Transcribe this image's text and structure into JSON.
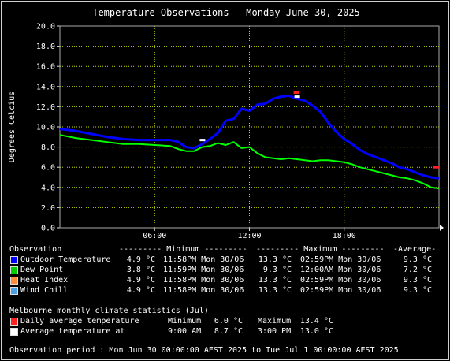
{
  "chart_data": {
    "type": "line",
    "title": "Temperature Observations - Monday June 30, 2025",
    "ylabel": "Degrees Celcius",
    "xlabel": "",
    "ylim": [
      0,
      20
    ],
    "yticks": [
      "0.0",
      "2.0",
      "4.0",
      "6.0",
      "8.0",
      "10.0",
      "12.0",
      "14.0",
      "16.0",
      "18.0",
      "20.0"
    ],
    "xlim_hours": [
      0,
      24
    ],
    "xticks": [
      {
        "hour": 6,
        "label": "06:00"
      },
      {
        "hour": 12,
        "label": "12:00"
      },
      {
        "hour": 18,
        "label": "18:00"
      }
    ],
    "grid": true,
    "series": [
      {
        "name": "Outdoor Temperature",
        "color": "#0000ff",
        "points": [
          [
            0,
            9.8
          ],
          [
            1,
            9.6
          ],
          [
            2,
            9.3
          ],
          [
            3,
            9.0
          ],
          [
            4,
            8.8
          ],
          [
            5,
            8.7
          ],
          [
            6,
            8.7
          ],
          [
            7,
            8.7
          ],
          [
            7.5,
            8.5
          ],
          [
            8,
            8.0
          ],
          [
            8.5,
            7.9
          ],
          [
            9,
            8.3
          ],
          [
            9.5,
            8.8
          ],
          [
            10,
            9.4
          ],
          [
            10.5,
            10.6
          ],
          [
            11,
            10.8
          ],
          [
            11.5,
            11.8
          ],
          [
            12,
            11.6
          ],
          [
            12.5,
            12.2
          ],
          [
            13,
            12.3
          ],
          [
            13.5,
            12.8
          ],
          [
            14,
            13.0
          ],
          [
            14.5,
            13.1
          ],
          [
            15,
            12.8
          ],
          [
            15.5,
            12.6
          ],
          [
            16,
            12.1
          ],
          [
            16.5,
            11.5
          ],
          [
            17,
            10.4
          ],
          [
            17.5,
            9.5
          ],
          [
            18,
            8.8
          ],
          [
            18.5,
            8.3
          ],
          [
            19,
            7.7
          ],
          [
            19.5,
            7.3
          ],
          [
            20,
            7.0
          ],
          [
            20.5,
            6.7
          ],
          [
            21,
            6.4
          ],
          [
            21.5,
            6.0
          ],
          [
            22,
            5.8
          ],
          [
            22.5,
            5.5
          ],
          [
            23,
            5.2
          ],
          [
            23.5,
            5.0
          ],
          [
            24,
            4.9
          ]
        ]
      },
      {
        "name": "Dew Point",
        "color": "#00ff00",
        "points": [
          [
            0,
            9.2
          ],
          [
            1,
            8.9
          ],
          [
            2,
            8.7
          ],
          [
            3,
            8.5
          ],
          [
            4,
            8.3
          ],
          [
            5,
            8.3
          ],
          [
            6,
            8.2
          ],
          [
            7,
            8.1
          ],
          [
            7.5,
            7.8
          ],
          [
            8,
            7.6
          ],
          [
            8.5,
            7.6
          ],
          [
            9,
            8.0
          ],
          [
            9.5,
            8.1
          ],
          [
            10,
            8.4
          ],
          [
            10.5,
            8.2
          ],
          [
            11,
            8.5
          ],
          [
            11.5,
            7.9
          ],
          [
            12,
            8.0
          ],
          [
            12.5,
            7.4
          ],
          [
            13,
            7.0
          ],
          [
            13.5,
            6.9
          ],
          [
            14,
            6.8
          ],
          [
            14.5,
            6.9
          ],
          [
            15,
            6.8
          ],
          [
            15.5,
            6.7
          ],
          [
            16,
            6.6
          ],
          [
            16.5,
            6.7
          ],
          [
            17,
            6.7
          ],
          [
            17.5,
            6.6
          ],
          [
            18,
            6.5
          ],
          [
            18.5,
            6.3
          ],
          [
            19,
            6.0
          ],
          [
            19.5,
            5.8
          ],
          [
            20,
            5.6
          ],
          [
            20.5,
            5.4
          ],
          [
            21,
            5.2
          ],
          [
            21.5,
            5.0
          ],
          [
            22,
            4.9
          ],
          [
            22.5,
            4.7
          ],
          [
            23,
            4.4
          ],
          [
            23.5,
            4.0
          ],
          [
            24,
            3.9
          ]
        ]
      }
    ],
    "markers": [
      {
        "name": "Daily average temperature max",
        "hour": 14.95,
        "value": 13.4,
        "color": "#ff2020"
      },
      {
        "name": "Daily average temperature min",
        "hour": 24,
        "value": 6.0,
        "color": "#ff2020"
      },
      {
        "name": "Average temperature",
        "hour": 9.0,
        "value": 8.7,
        "color": "#ffffff"
      },
      {
        "name": "Average temperature max",
        "hour": 15.0,
        "value": 13.0,
        "color": "#ffffff"
      }
    ]
  },
  "table": {
    "header": {
      "observation": "Observation",
      "minimum": "--------- Minimum ---------",
      "maximum": "--------- Maximum ---------",
      "average": "-Average-"
    },
    "rows": [
      {
        "name": "Outdoor Temperature",
        "color": "#0000ff",
        "min": "4.9 °C",
        "min_at": "11:58PM Mon 30/06",
        "max": "13.3 °C",
        "max_at": "02:59PM Mon 30/06",
        "avg": "9.3 °C"
      },
      {
        "name": "Dew Point",
        "color": "#00cc00",
        "min": "3.8 °C",
        "min_at": "11:59PM Mon 30/06",
        "max": "9.3 °C",
        "max_at": "12:00AM Mon 30/06",
        "avg": "7.2 °C"
      },
      {
        "name": "Heat Index",
        "color": "#ff8c3c",
        "min": "4.9 °C",
        "min_at": "11:58PM Mon 30/06",
        "max": "13.3 °C",
        "max_at": "02:59PM Mon 30/06",
        "avg": "9.3 °C"
      },
      {
        "name": "Wind Chill",
        "color": "#4aa0e0",
        "min": "4.9 °C",
        "min_at": "11:58PM Mon 30/06",
        "max": "13.3 °C",
        "max_at": "02:59PM Mon 30/06",
        "avg": "9.3 °C"
      }
    ]
  },
  "climate": {
    "heading": "Melbourne monthly climate statistics (Jul)",
    "rows": [
      {
        "name": "Daily average temperature",
        "color": "#ff2020",
        "c1": "Minimum",
        "c2": "6.0 °C",
        "c3": "Maximum",
        "c4": "13.4 °C"
      },
      {
        "name": "Average temperature at",
        "color": "#ffffff",
        "c1": "9:00 AM",
        "c2": "8.7 °C",
        "c3": "3:00 PM",
        "c4": "13.0 °C"
      }
    ]
  },
  "period": "Observation period : Mon Jun 30 00:00:00 AEST 2025 to Tue Jul 1 00:00:00 AEST 2025"
}
